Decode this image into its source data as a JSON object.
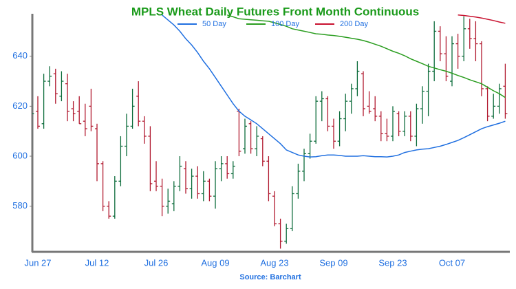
{
  "chart_data": {
    "type": "ohlc",
    "title": "MPLS Wheat Daily Futures Front Month Continuous",
    "source": "Source: Barchart",
    "up_color": "#0b6b3a",
    "down_color": "#b0182e",
    "ylim": [
      562,
      657
    ],
    "yticks": [
      580,
      600,
      620,
      640
    ],
    "categories": [
      null,
      "Jun 27",
      null,
      null,
      null,
      null,
      null,
      null,
      null,
      null,
      null,
      "Jul 12",
      null,
      null,
      null,
      null,
      null,
      null,
      null,
      null,
      null,
      "Jul 26",
      null,
      null,
      null,
      null,
      null,
      null,
      null,
      null,
      null,
      "Aug 09",
      null,
      null,
      null,
      null,
      null,
      null,
      null,
      null,
      null,
      "Aug 23",
      null,
      null,
      null,
      null,
      null,
      null,
      null,
      null,
      null,
      "Sep 09",
      null,
      null,
      null,
      null,
      null,
      null,
      null,
      null,
      null,
      "Sep 23",
      null,
      null,
      null,
      null,
      null,
      null,
      null,
      null,
      null,
      "Oct 07",
      null,
      null,
      null,
      null,
      null,
      null,
      null,
      null,
      null
    ],
    "open": [
      606,
      618,
      613,
      630,
      633,
      624,
      629,
      619,
      618,
      614,
      620,
      611,
      597,
      580,
      576,
      590,
      604,
      612,
      624,
      614,
      608,
      590,
      588,
      580,
      581,
      588,
      595,
      587,
      592,
      585,
      590,
      584,
      595,
      597,
      593,
      618,
      603,
      613,
      603,
      607,
      598,
      584,
      573,
      566,
      571,
      585,
      594,
      601,
      606,
      622,
      623,
      612,
      606,
      615,
      622,
      627,
      633,
      620,
      619,
      616,
      609,
      608,
      617,
      610,
      616,
      608,
      619,
      626,
      634,
      650,
      641,
      630,
      645,
      640,
      651,
      647,
      645,
      627,
      616,
      620,
      628
    ],
    "high": [
      622,
      624,
      633,
      636,
      635,
      634,
      633,
      622,
      624,
      621,
      627,
      613,
      598,
      582,
      592,
      608,
      617,
      627,
      630,
      616,
      612,
      598,
      591,
      587,
      590,
      600,
      598,
      595,
      596,
      594,
      591,
      598,
      600,
      600,
      598,
      619,
      615,
      614,
      612,
      608,
      600,
      586,
      575,
      573,
      588,
      597,
      603,
      609,
      624,
      626,
      624,
      615,
      618,
      625,
      629,
      638,
      634,
      626,
      624,
      618,
      615,
      620,
      618,
      618,
      618,
      621,
      628,
      637,
      654,
      652,
      648,
      648,
      649,
      656,
      655,
      654,
      646,
      628,
      625,
      629,
      637
    ],
    "low": [
      603,
      611,
      611,
      628,
      621,
      622,
      614,
      614,
      613,
      608,
      610,
      590,
      578,
      575,
      575,
      588,
      600,
      611,
      612,
      605,
      586,
      586,
      576,
      577,
      578,
      586,
      585,
      583,
      583,
      582,
      582,
      579,
      590,
      591,
      591,
      600,
      601,
      601,
      600,
      596,
      582,
      572,
      563,
      565,
      570,
      583,
      590,
      599,
      605,
      614,
      610,
      603,
      604,
      610,
      617,
      624,
      616,
      617,
      614,
      606,
      606,
      606,
      608,
      608,
      606,
      604,
      613,
      616,
      630,
      638,
      630,
      628,
      635,
      638,
      643,
      638,
      624,
      614,
      615,
      617,
      615
    ],
    "close": [
      617,
      612,
      630,
      632,
      625,
      630,
      618,
      617,
      613,
      611,
      612,
      597,
      580,
      576,
      590,
      604,
      612,
      620,
      614,
      608,
      589,
      588,
      580,
      582,
      588,
      596,
      587,
      592,
      585,
      590,
      584,
      595,
      597,
      593,
      596,
      602,
      612,
      603,
      608,
      598,
      585,
      573,
      566,
      571,
      585,
      594,
      601,
      606,
      622,
      623,
      612,
      606,
      615,
      622,
      627,
      634,
      619,
      618,
      616,
      609,
      608,
      618,
      610,
      616,
      608,
      619,
      626,
      634,
      650,
      641,
      632,
      645,
      640,
      651,
      647,
      645,
      627,
      616,
      620,
      627,
      617
    ],
    "series": [
      {
        "name": "50 Day",
        "color": "#1f6fe0",
        "values": [
          null,
          null,
          null,
          null,
          null,
          null,
          null,
          null,
          null,
          null,
          null,
          null,
          null,
          null,
          null,
          null,
          null,
          null,
          null,
          null,
          null,
          null,
          656.5,
          654.5,
          652.5,
          650,
          647,
          644.5,
          641.5,
          638,
          635,
          631.5,
          628,
          624.5,
          621,
          618,
          616,
          614.5,
          613,
          611,
          609,
          607,
          605,
          602.5,
          601.5,
          600.5,
          600,
          599.7,
          599.8,
          600.2,
          600.5,
          600.5,
          600.3,
          600,
          600,
          600,
          600.2,
          600,
          599.8,
          599.8,
          599.7,
          600,
          600.5,
          601.5,
          602,
          602.5,
          602.8,
          603,
          603.5,
          604,
          604.7,
          605.5,
          606.3,
          607.4,
          608.6,
          609.8,
          611,
          611.8,
          612.5,
          613.2,
          614
        ]
      },
      {
        "name": "100 Day",
        "color": "#2a9d1f",
        "values": [
          null,
          null,
          null,
          null,
          null,
          null,
          null,
          null,
          null,
          null,
          null,
          null,
          null,
          null,
          null,
          null,
          null,
          null,
          null,
          null,
          null,
          null,
          null,
          null,
          null,
          null,
          null,
          null,
          null,
          null,
          null,
          null,
          null,
          656.5,
          655.8,
          655,
          654.8,
          654.6,
          654.4,
          654.2,
          654,
          653.4,
          652.7,
          652,
          651,
          650.5,
          650,
          649.5,
          649,
          648.8,
          648.5,
          648.3,
          648,
          647.6,
          647.2,
          646.8,
          646.3,
          645.6,
          644.8,
          644,
          643,
          642,
          641.2,
          640.2,
          639,
          638,
          637,
          636,
          635.3,
          634.6,
          634,
          633.2,
          632.3,
          631.5,
          630.6,
          629.8,
          629,
          627.6,
          626.2,
          625,
          623.5
        ]
      },
      {
        "name": "200 Day",
        "color": "#c8102e",
        "values": [
          null,
          null,
          null,
          null,
          null,
          null,
          null,
          null,
          null,
          null,
          null,
          null,
          null,
          null,
          null,
          null,
          null,
          null,
          null,
          null,
          null,
          null,
          null,
          null,
          null,
          null,
          null,
          null,
          null,
          null,
          null,
          null,
          null,
          null,
          null,
          null,
          null,
          null,
          null,
          null,
          null,
          null,
          null,
          null,
          null,
          null,
          null,
          null,
          null,
          null,
          null,
          null,
          null,
          null,
          null,
          null,
          null,
          null,
          null,
          null,
          null,
          null,
          null,
          null,
          null,
          null,
          null,
          null,
          null,
          null,
          null,
          null,
          656.5,
          656.3,
          656,
          655.7,
          655.3,
          654.8,
          654.3,
          653.7,
          653.2
        ]
      }
    ]
  }
}
